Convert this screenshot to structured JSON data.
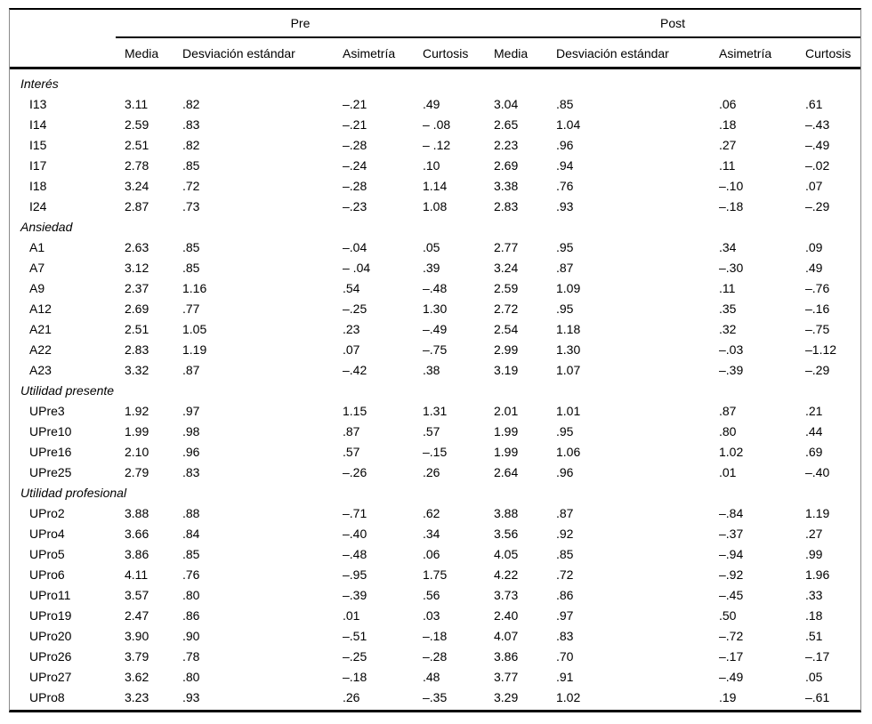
{
  "colors": {
    "text": "#000000",
    "background": "#ffffff",
    "rule": "#000000"
  },
  "table": {
    "groups": [
      {
        "label": "Pre"
      },
      {
        "label": "Post"
      }
    ],
    "columns": [
      "Media",
      "Desviación estándar",
      "Asimetría",
      "Curtosis",
      "Media",
      "Desviación estándar",
      "Asimetría",
      "Curtosis"
    ],
    "sections": [
      {
        "label": "Interés",
        "rows": [
          {
            "label": "I13",
            "values": [
              "3.11",
              ".82",
              "–.21",
              ".49",
              "3.04",
              ".85",
              ".06",
              ".61"
            ]
          },
          {
            "label": "I14",
            "values": [
              "2.59",
              ".83",
              "–.21",
              "– .08",
              "2.65",
              "1.04",
              ".18",
              "–.43"
            ]
          },
          {
            "label": "I15",
            "values": [
              "2.51",
              ".82",
              "–.28",
              "– .12",
              "2.23",
              ".96",
              ".27",
              "–.49"
            ]
          },
          {
            "label": "I17",
            "values": [
              "2.78",
              ".85",
              "–.24",
              ".10",
              "2.69",
              ".94",
              ".11",
              "–.02"
            ]
          },
          {
            "label": "I18",
            "values": [
              "3.24",
              ".72",
              "–.28",
              "1.14",
              "3.38",
              ".76",
              "–.10",
              ".07"
            ]
          },
          {
            "label": "I24",
            "values": [
              "2.87",
              ".73",
              "–.23",
              "1.08",
              "2.83",
              ".93",
              "–.18",
              "–.29"
            ]
          }
        ]
      },
      {
        "label": "Ansiedad",
        "rows": [
          {
            "label": "A1",
            "values": [
              "2.63",
              ".85",
              "–.04",
              ".05",
              "2.77",
              ".95",
              ".34",
              ".09"
            ]
          },
          {
            "label": "A7",
            "values": [
              "3.12",
              ".85",
              "– .04",
              ".39",
              "3.24",
              ".87",
              "–.30",
              ".49"
            ]
          },
          {
            "label": "A9",
            "values": [
              "2.37",
              "1.16",
              ".54",
              "–.48",
              "2.59",
              "1.09",
              ".11",
              "–.76"
            ]
          },
          {
            "label": "A12",
            "values": [
              "2.69",
              ".77",
              "–.25",
              "1.30",
              "2.72",
              ".95",
              ".35",
              "–.16"
            ]
          },
          {
            "label": "A21",
            "values": [
              "2.51",
              "1.05",
              ".23",
              "–.49",
              "2.54",
              "1.18",
              ".32",
              "–.75"
            ]
          },
          {
            "label": "A22",
            "values": [
              "2.83",
              "1.19",
              ".07",
              "–.75",
              "2.99",
              "1.30",
              "–.03",
              "–1.12"
            ]
          },
          {
            "label": "A23",
            "values": [
              "3.32",
              ".87",
              "–.42",
              ".38",
              "3.19",
              "1.07",
              "–.39",
              "–.29"
            ]
          }
        ]
      },
      {
        "label": "Utilidad presente",
        "rows": [
          {
            "label": "UPre3",
            "values": [
              "1.92",
              ".97",
              "1.15",
              "1.31",
              "2.01",
              "1.01",
              ".87",
              ".21"
            ]
          },
          {
            "label": "UPre10",
            "values": [
              "1.99",
              ".98",
              ".87",
              ".57",
              "1.99",
              ".95",
              ".80",
              ".44"
            ]
          },
          {
            "label": "UPre16",
            "values": [
              "2.10",
              ".96",
              ".57",
              "–.15",
              "1.99",
              "1.06",
              "1.02",
              ".69"
            ]
          },
          {
            "label": "UPre25",
            "values": [
              "2.79",
              ".83",
              "–.26",
              ".26",
              "2.64",
              ".96",
              ".01",
              "–.40"
            ]
          }
        ]
      },
      {
        "label": "Utilidad profesional",
        "rows": [
          {
            "label": "UPro2",
            "values": [
              "3.88",
              ".88",
              "–.71",
              ".62",
              "3.88",
              ".87",
              "–.84",
              "1.19"
            ]
          },
          {
            "label": "UPro4",
            "values": [
              "3.66",
              ".84",
              "–.40",
              ".34",
              "3.56",
              ".92",
              "–.37",
              ".27"
            ]
          },
          {
            "label": "UPro5",
            "values": [
              "3.86",
              ".85",
              "–.48",
              ".06",
              "4.05",
              ".85",
              "–.94",
              ".99"
            ]
          },
          {
            "label": "UPro6",
            "values": [
              "4.11",
              ".76",
              "–.95",
              "1.75",
              "4.22",
              ".72",
              "–.92",
              "1.96"
            ]
          },
          {
            "label": "UPro11",
            "values": [
              "3.57",
              ".80",
              "–.39",
              ".56",
              "3.73",
              ".86",
              "–.45",
              ".33"
            ]
          },
          {
            "label": "UPro19",
            "values": [
              "2.47",
              ".86",
              ".01",
              ".03",
              "2.40",
              ".97",
              ".50",
              ".18"
            ]
          },
          {
            "label": "UPro20",
            "values": [
              "3.90",
              ".90",
              "–.51",
              "–.18",
              "4.07",
              ".83",
              "–.72",
              ".51"
            ]
          },
          {
            "label": "UPro26",
            "values": [
              "3.79",
              ".78",
              "–.25",
              "–.28",
              "3.86",
              ".70",
              "–.17",
              "–.17"
            ]
          },
          {
            "label": "UPro27",
            "values": [
              "3.62",
              ".80",
              "–.18",
              ".48",
              "3.77",
              ".91",
              "–.49",
              ".05"
            ]
          },
          {
            "label": "UPro8",
            "values": [
              "3.23",
              ".93",
              ".26",
              "–.35",
              "3.29",
              "1.02",
              ".19",
              "–.61"
            ]
          }
        ]
      }
    ]
  }
}
